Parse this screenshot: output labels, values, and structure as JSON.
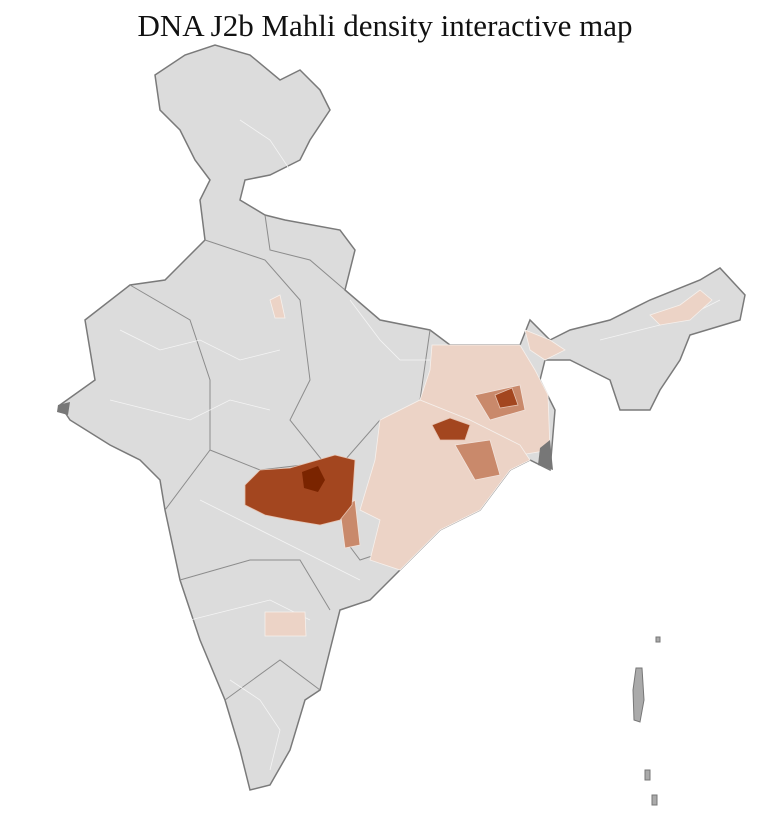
{
  "title": "DNA J2b Mahli density interactive map"
}
